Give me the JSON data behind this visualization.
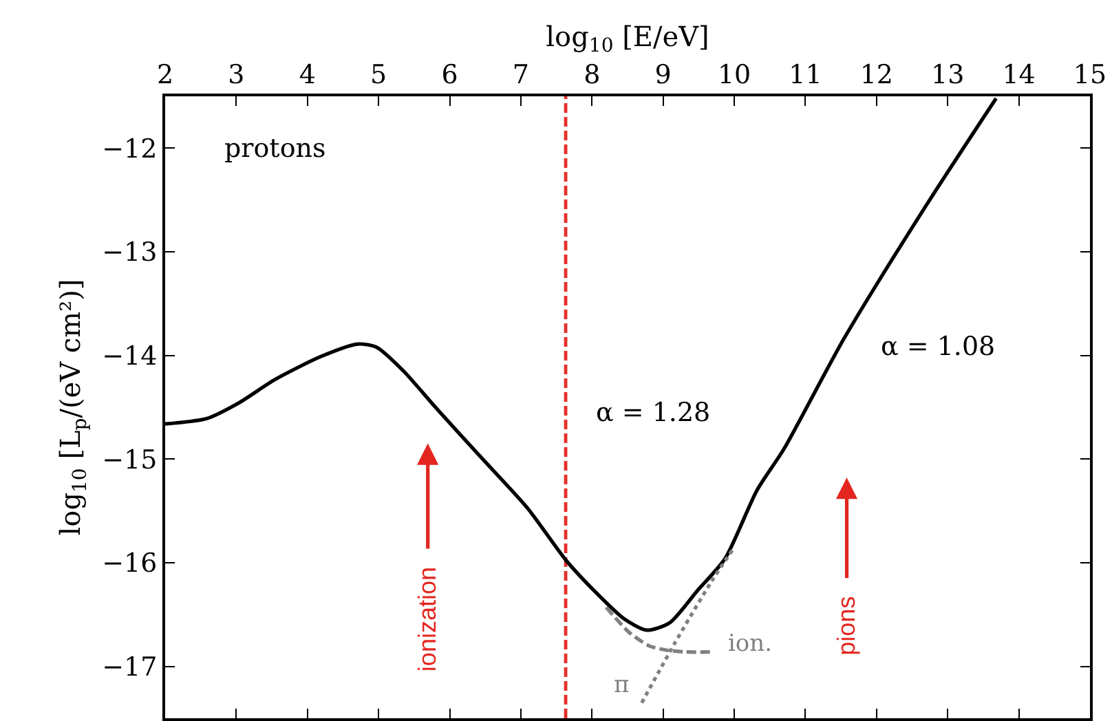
{
  "chart_data": {
    "type": "line",
    "xlabel": "log$_{10}$ [E/eV]",
    "ylabel": "log$_{10}$ [L$_{p}$/(eV cm²)]",
    "xlim": [
      2,
      15
    ],
    "xticks": [
      2,
      3,
      4,
      5,
      6,
      7,
      8,
      9,
      10,
      11,
      12,
      13,
      14,
      15
    ],
    "ylim": [
      -17.5,
      -11.5
    ],
    "yticks": [
      {
        "value": -17,
        "label": "−17"
      },
      {
        "value": -16,
        "label": "−16"
      },
      {
        "value": -15,
        "label": "−15"
      },
      {
        "value": -14,
        "label": "−14"
      },
      {
        "value": -13,
        "label": "−13"
      },
      {
        "value": -12,
        "label": "−12"
      }
    ],
    "grid": false,
    "marker": "none",
    "series": [
      {
        "color": "#000000",
        "line_style": "solid",
        "x": [
          2,
          2.58,
          3.03,
          3.55,
          4.19,
          4.71,
          4.97,
          5.35,
          5.8,
          6.45,
          7.09,
          7.64,
          8.06,
          8.45,
          8.77,
          9.09,
          9.48,
          9.87,
          10.32,
          10.7,
          11.54,
          12.7,
          13.68
        ],
        "values": [
          -14.66,
          -14.61,
          -14.46,
          -14.23,
          -14.01,
          -13.89,
          -13.92,
          -14.15,
          -14.5,
          -14.99,
          -15.47,
          -15.98,
          -16.29,
          -16.54,
          -16.65,
          -16.58,
          -16.27,
          -15.96,
          -15.3,
          -14.9,
          -13.84,
          -12.55,
          -11.52
        ]
      },
      {
        "color": "#808080",
        "line_style": "dashed",
        "x": [
          8.2,
          8.52,
          8.8,
          9.02,
          9.3,
          9.7
        ],
        "values": [
          -16.43,
          -16.67,
          -16.8,
          -16.84,
          -16.86,
          -16.86
        ]
      },
      {
        "color": "#808080",
        "line_style": "dotted",
        "x": [
          8.7,
          9.16,
          9.68,
          10.0
        ],
        "values": [
          -17.35,
          -16.78,
          -16.18,
          -15.85
        ]
      }
    ],
    "ref_lines": [
      {
        "axis": "x",
        "value": 7.63,
        "color": "#e8302a",
        "line_style": "dashed"
      }
    ],
    "annotations": [
      "protons",
      "α = 1.28",
      "α = 1.08",
      "ion.",
      "π",
      "ionization",
      "pions"
    ]
  }
}
